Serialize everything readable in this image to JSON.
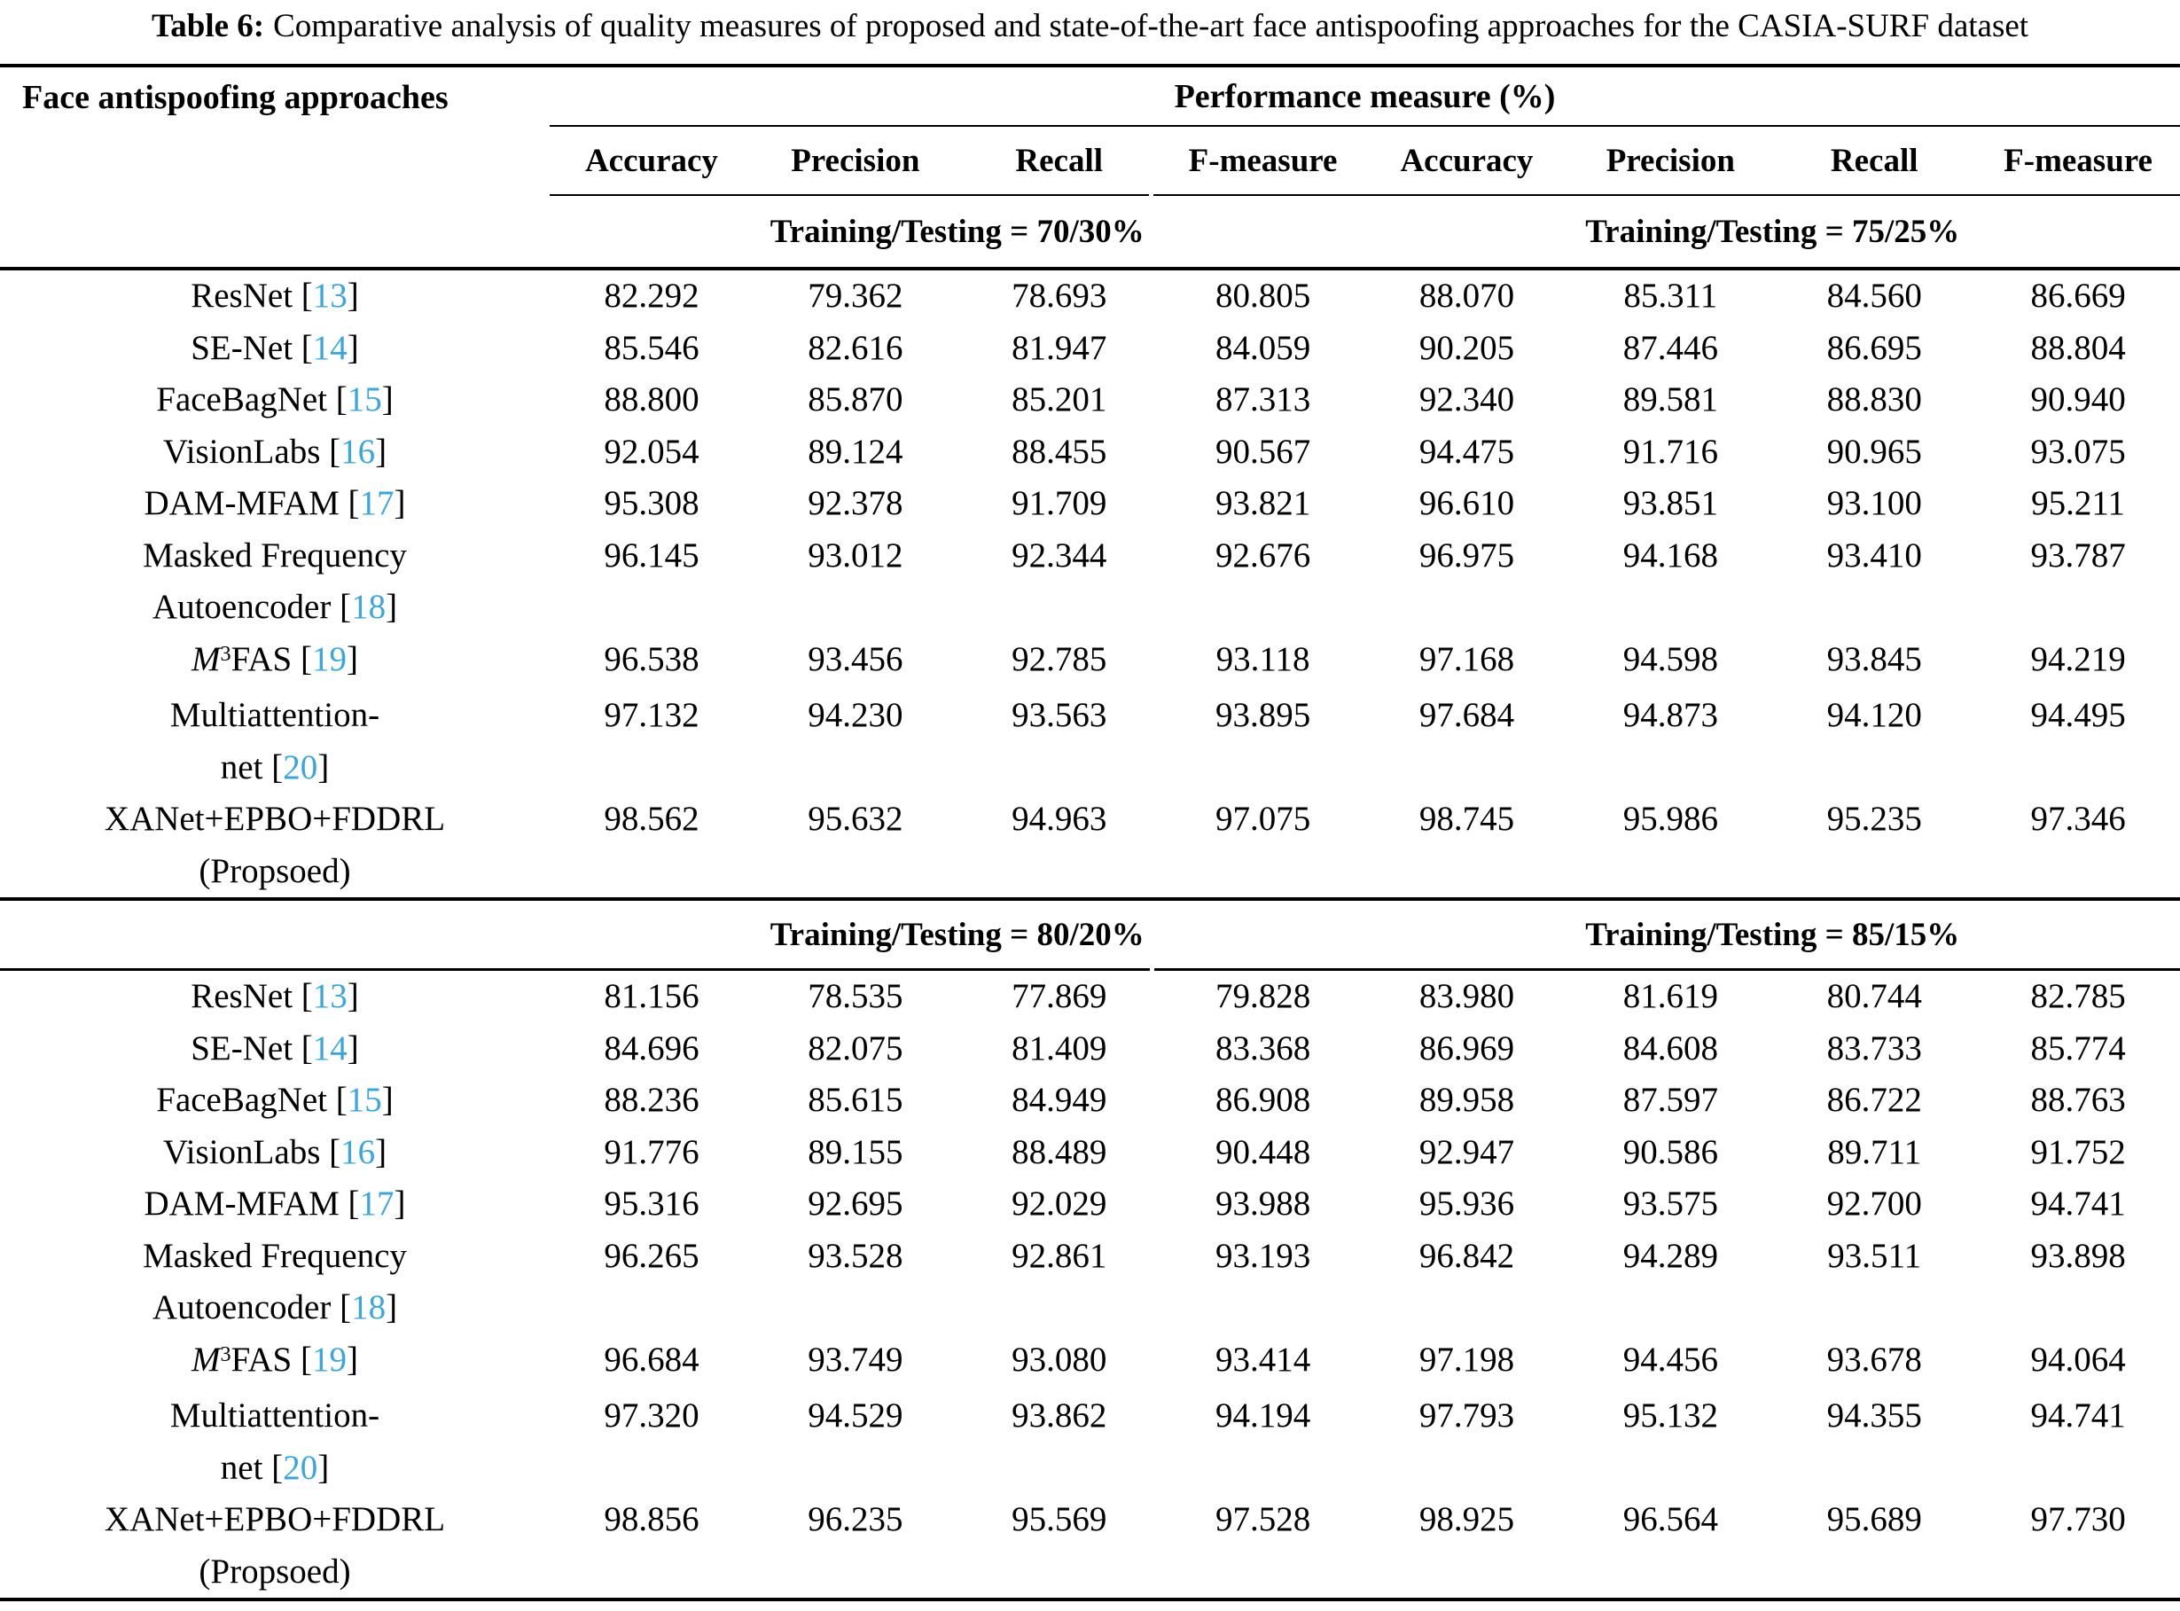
{
  "caption": {
    "prefix": "Table 6:",
    "text": "Comparative analysis of quality measures of proposed and state-of-the-art face antispoofing approaches for the CASIA-SURF dataset"
  },
  "colors": {
    "citation_link": "#3aa6dc",
    "text": "#000000",
    "background": "#ffffff"
  },
  "table": {
    "row_header": "Face antispoofing approaches",
    "perf_header": "Performance measure (%)",
    "col_headers": [
      "Accuracy",
      "Precision",
      "Recall",
      "F-measure",
      "Accuracy",
      "Precision",
      "Recall",
      "F-measure"
    ],
    "sections": [
      {
        "group_headers": [
          "Training/Testing = 70/30%",
          "Training/Testing = 75/25%"
        ],
        "rows": [
          {
            "lines": [
              [
                {
                  "t": "ResNet ["
                },
                {
                  "t": "13",
                  "s": "cite"
                },
                {
                  "t": "]"
                }
              ]
            ],
            "values": [
              "82.292",
              "79.362",
              "78.693",
              "80.805",
              "88.070",
              "85.311",
              "84.560",
              "86.669"
            ]
          },
          {
            "lines": [
              [
                {
                  "t": "SE-Net ["
                },
                {
                  "t": "14",
                  "s": "cite"
                },
                {
                  "t": "]"
                }
              ]
            ],
            "values": [
              "85.546",
              "82.616",
              "81.947",
              "84.059",
              "90.205",
              "87.446",
              "86.695",
              "88.804"
            ]
          },
          {
            "lines": [
              [
                {
                  "t": "FaceBagNet ["
                },
                {
                  "t": "15",
                  "s": "cite"
                },
                {
                  "t": "]"
                }
              ]
            ],
            "values": [
              "88.800",
              "85.870",
              "85.201",
              "87.313",
              "92.340",
              "89.581",
              "88.830",
              "90.940"
            ]
          },
          {
            "lines": [
              [
                {
                  "t": "VisionLabs ["
                },
                {
                  "t": "16",
                  "s": "cite"
                },
                {
                  "t": "]"
                }
              ]
            ],
            "values": [
              "92.054",
              "89.124",
              "88.455",
              "90.567",
              "94.475",
              "91.716",
              "90.965",
              "93.075"
            ]
          },
          {
            "lines": [
              [
                {
                  "t": "DAM-MFAM ["
                },
                {
                  "t": "17",
                  "s": "cite"
                },
                {
                  "t": "]"
                }
              ]
            ],
            "values": [
              "95.308",
              "92.378",
              "91.709",
              "93.821",
              "96.610",
              "93.851",
              "93.100",
              "95.211"
            ]
          },
          {
            "lines": [
              [
                {
                  "t": "Masked Frequency"
                }
              ],
              [
                {
                  "t": "Autoencoder ["
                },
                {
                  "t": "18",
                  "s": "cite"
                },
                {
                  "t": "]"
                }
              ]
            ],
            "values": [
              "96.145",
              "93.012",
              "92.344",
              "92.676",
              "96.975",
              "94.168",
              "93.410",
              "93.787"
            ]
          },
          {
            "lines": [
              [
                {
                  "t": "M",
                  "s": "it"
                },
                {
                  "t": "3",
                  "s": "sup"
                },
                {
                  "t": "FAS ["
                },
                {
                  "t": "19",
                  "s": "cite"
                },
                {
                  "t": "]"
                }
              ]
            ],
            "values": [
              "96.538",
              "93.456",
              "92.785",
              "93.118",
              "97.168",
              "94.598",
              "93.845",
              "94.219"
            ]
          },
          {
            "lines": [
              [
                {
                  "t": "Multiattention-"
                }
              ],
              [
                {
                  "t": "net ["
                },
                {
                  "t": "20",
                  "s": "cite"
                },
                {
                  "t": "]"
                }
              ]
            ],
            "values": [
              "97.132",
              "94.230",
              "93.563",
              "93.895",
              "97.684",
              "94.873",
              "94.120",
              "94.495"
            ]
          },
          {
            "lines": [
              [
                {
                  "t": "XANet+EPBO+FDDRL"
                }
              ],
              [
                {
                  "t": "(Propsoed)"
                }
              ]
            ],
            "values": [
              "98.562",
              "95.632",
              "94.963",
              "97.075",
              "98.745",
              "95.986",
              "95.235",
              "97.346"
            ]
          }
        ]
      },
      {
        "group_headers": [
          "Training/Testing = 80/20%",
          "Training/Testing = 85/15%"
        ],
        "rows": [
          {
            "lines": [
              [
                {
                  "t": "ResNet ["
                },
                {
                  "t": "13",
                  "s": "cite"
                },
                {
                  "t": "]"
                }
              ]
            ],
            "values": [
              "81.156",
              "78.535",
              "77.869",
              "79.828",
              "83.980",
              "81.619",
              "80.744",
              "82.785"
            ]
          },
          {
            "lines": [
              [
                {
                  "t": "SE-Net ["
                },
                {
                  "t": "14",
                  "s": "cite"
                },
                {
                  "t": "]"
                }
              ]
            ],
            "values": [
              "84.696",
              "82.075",
              "81.409",
              "83.368",
              "86.969",
              "84.608",
              "83.733",
              "85.774"
            ]
          },
          {
            "lines": [
              [
                {
                  "t": "FaceBagNet ["
                },
                {
                  "t": "15",
                  "s": "cite"
                },
                {
                  "t": "]"
                }
              ]
            ],
            "values": [
              "88.236",
              "85.615",
              "84.949",
              "86.908",
              "89.958",
              "87.597",
              "86.722",
              "88.763"
            ]
          },
          {
            "lines": [
              [
                {
                  "t": "VisionLabs ["
                },
                {
                  "t": "16",
                  "s": "cite"
                },
                {
                  "t": "]"
                }
              ]
            ],
            "values": [
              "91.776",
              "89.155",
              "88.489",
              "90.448",
              "92.947",
              "90.586",
              "89.711",
              "91.752"
            ]
          },
          {
            "lines": [
              [
                {
                  "t": "DAM-MFAM ["
                },
                {
                  "t": "17",
                  "s": "cite"
                },
                {
                  "t": "]"
                }
              ]
            ],
            "values": [
              "95.316",
              "92.695",
              "92.029",
              "93.988",
              "95.936",
              "93.575",
              "92.700",
              "94.741"
            ]
          },
          {
            "lines": [
              [
                {
                  "t": "Masked Frequency"
                }
              ],
              [
                {
                  "t": "Autoencoder ["
                },
                {
                  "t": "18",
                  "s": "cite"
                },
                {
                  "t": "]"
                }
              ]
            ],
            "values": [
              "96.265",
              "93.528",
              "92.861",
              "93.193",
              "96.842",
              "94.289",
              "93.511",
              "93.898"
            ]
          },
          {
            "lines": [
              [
                {
                  "t": "M",
                  "s": "it"
                },
                {
                  "t": "3",
                  "s": "sup"
                },
                {
                  "t": "FAS ["
                },
                {
                  "t": "19",
                  "s": "cite"
                },
                {
                  "t": "]"
                }
              ]
            ],
            "values": [
              "96.684",
              "93.749",
              "93.080",
              "93.414",
              "97.198",
              "94.456",
              "93.678",
              "94.064"
            ]
          },
          {
            "lines": [
              [
                {
                  "t": "Multiattention-"
                }
              ],
              [
                {
                  "t": "net ["
                },
                {
                  "t": "20",
                  "s": "cite"
                },
                {
                  "t": "]"
                }
              ]
            ],
            "values": [
              "97.320",
              "94.529",
              "93.862",
              "94.194",
              "97.793",
              "95.132",
              "94.355",
              "94.741"
            ]
          },
          {
            "lines": [
              [
                {
                  "t": "XANet+EPBO+FDDRL"
                }
              ],
              [
                {
                  "t": "(Propsoed)"
                }
              ]
            ],
            "values": [
              "98.856",
              "96.235",
              "95.569",
              "97.528",
              "98.925",
              "96.564",
              "95.689",
              "97.730"
            ]
          }
        ]
      }
    ]
  }
}
